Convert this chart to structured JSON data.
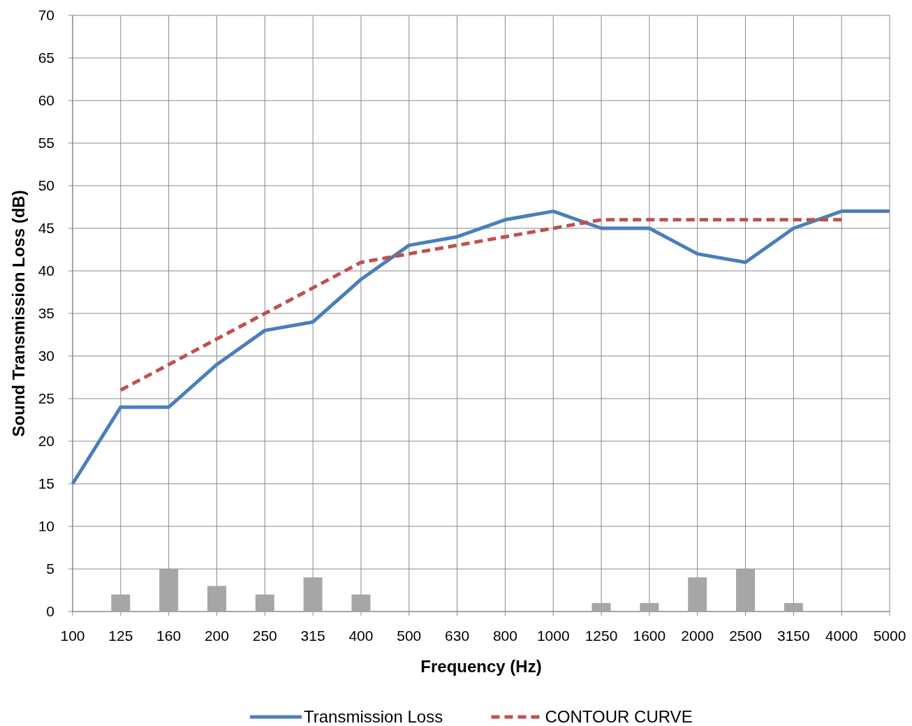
{
  "chart_data": {
    "type": "line",
    "xlabel": "Frequency (Hz)",
    "ylabel": "Sound Transmission Loss (dB)",
    "categories": [
      "100",
      "125",
      "160",
      "200",
      "250",
      "315",
      "400",
      "500",
      "630",
      "800",
      "1000",
      "1250",
      "1600",
      "2000",
      "2500",
      "3150",
      "4000",
      "5000"
    ],
    "series": [
      {
        "type": "bar",
        "color": "#a6a6a6",
        "values": [
          null,
          2,
          5,
          3,
          2,
          4,
          2,
          null,
          null,
          null,
          null,
          1,
          1,
          4,
          5,
          1,
          null,
          null
        ]
      },
      {
        "name": "Transmission Loss",
        "color": "#4a7ebb",
        "line_style": "solid",
        "values": [
          15,
          24,
          24,
          29,
          33,
          34,
          39,
          43,
          44,
          46,
          47,
          45,
          45,
          42,
          41,
          45,
          47,
          47
        ]
      },
      {
        "name": "CONTOUR CURVE",
        "color": "#c0504d",
        "line_style": "dashed",
        "values": [
          null,
          26,
          29,
          32,
          35,
          38,
          41,
          42,
          43,
          44,
          45,
          46,
          46,
          46,
          46,
          46,
          46,
          null
        ]
      }
    ],
    "ylim": [
      0,
      70
    ],
    "yticks": [
      0,
      5,
      10,
      15,
      20,
      25,
      30,
      35,
      40,
      45,
      50,
      55,
      60,
      65,
      70
    ],
    "grid": true,
    "legend": "bottom",
    "marker": "none"
  }
}
